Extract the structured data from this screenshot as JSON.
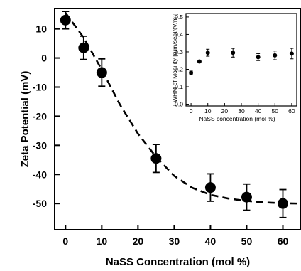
{
  "chart_data": [
    {
      "type": "scatter",
      "xlabel": "NaSS Concentration (mol %)",
      "ylabel": "Zeta Potential (mV)",
      "xlim": [
        -3,
        65
      ],
      "ylim": [
        -59,
        17
      ],
      "xticks": [
        0,
        10,
        20,
        30,
        40,
        50,
        60
      ],
      "yticks": [
        10,
        0,
        -10,
        -20,
        -30,
        -40,
        -50
      ],
      "grid": false,
      "series": [
        {
          "x": [
            0,
            5,
            10,
            25,
            40,
            50,
            60
          ],
          "y": [
            13,
            3.5,
            -5,
            -34.5,
            -44.5,
            -47.8,
            -50
          ],
          "error": [
            3,
            4,
            4.7,
            4.8,
            4.7,
            4.5,
            4.8
          ]
        }
      ],
      "fit": {
        "style": "dashed",
        "x": [
          0,
          5,
          10,
          15,
          20,
          25,
          30,
          35,
          40,
          45,
          50,
          55,
          60,
          65
        ],
        "y": [
          15.5,
          7,
          -4,
          -16,
          -26,
          -34,
          -40.5,
          -44.6,
          -47,
          -48.3,
          -49.1,
          -49.6,
          -49.9,
          -50
        ]
      }
    },
    {
      "type": "scatter",
      "inset": true,
      "xlabel": "NaSS concentration (mol %)",
      "ylabel": "FWHM of Mobility [(um/sec)/(V/m)]",
      "xlim": [
        -3,
        63
      ],
      "ylim": [
        -0.01,
        0.52
      ],
      "xticks": [
        0,
        10,
        20,
        30,
        40,
        50,
        60
      ],
      "yticks": [
        0.0,
        0.1,
        0.2,
        0.3,
        0.4,
        0.5
      ],
      "ytick_labels": [
        "0.0",
        "0.1",
        "0.2",
        "0.3",
        "0.4",
        "0.5"
      ],
      "series": [
        {
          "x": [
            0,
            5,
            10,
            25,
            40,
            50,
            60
          ],
          "y": [
            0.18,
            0.245,
            0.295,
            0.295,
            0.27,
            0.28,
            0.29
          ],
          "error": [
            0.01,
            0.005,
            0.02,
            0.025,
            0.02,
            0.025,
            0.03
          ]
        }
      ]
    }
  ]
}
